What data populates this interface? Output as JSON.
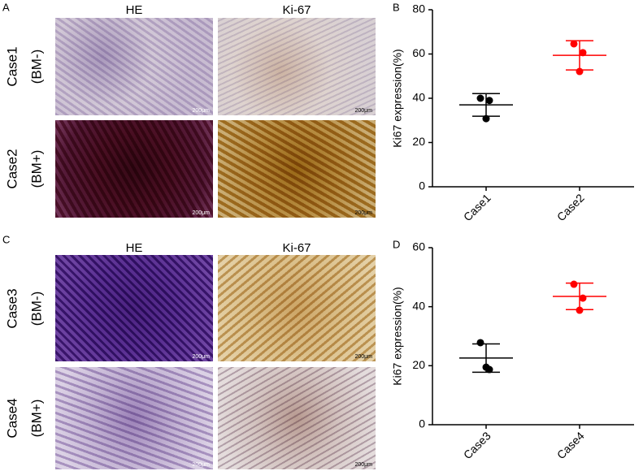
{
  "figure": {
    "panel_labels": [
      "A",
      "C"
    ],
    "headers": [
      "HE",
      "Ki-67"
    ],
    "rows": [
      {
        "case": "Case1",
        "group": "(BM-)"
      },
      {
        "case": "Case2",
        "group": "(BM+)"
      },
      {
        "case": "Case3",
        "group": "(BM-)"
      },
      {
        "case": "Case4",
        "group": "(BM+)"
      }
    ],
    "scale_bar": "200μm"
  },
  "chart_data": [
    {
      "type": "dot",
      "panel_label": "B",
      "ylabel": "Ki67 expression(%)",
      "categories": [
        "Case1",
        "Case2"
      ],
      "colors": [
        "#000000",
        "#ff0000"
      ],
      "points": [
        [
          40,
          39,
          30.8
        ],
        [
          64.6,
          60.6,
          52.1
        ]
      ],
      "means": [
        37,
        59.4
      ],
      "errors": [
        5.1,
        6.6
      ],
      "ylim": [
        0,
        80
      ],
      "yticks": [
        0,
        20,
        40,
        60,
        80
      ]
    },
    {
      "type": "dot",
      "panel_label": "D",
      "ylabel": "Ki67 expression(%)",
      "categories": [
        "Case3",
        "Case4"
      ],
      "colors": [
        "#000000",
        "#ff0000"
      ],
      "points": [
        [
          27.8,
          18.7,
          19.5
        ],
        [
          47.6,
          42.9,
          38.8
        ]
      ],
      "means": [
        22.6,
        43.5
      ],
      "errors": [
        4.8,
        4.5
      ],
      "ylim": [
        0,
        60
      ],
      "yticks": [
        0,
        20,
        40,
        60
      ]
    }
  ]
}
